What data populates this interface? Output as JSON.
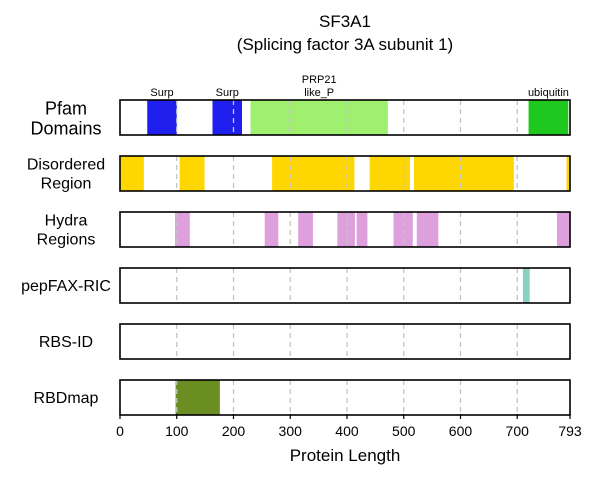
{
  "chart_data": {
    "type": "protein-track",
    "title_line1": "SF3A1",
    "title_line2": "(Splicing factor 3A subunit 1)",
    "xlabel": "Protein Length",
    "xlim": [
      0,
      793
    ],
    "xticks": [
      {
        "value": 0,
        "label": "0"
      },
      {
        "value": 100,
        "label": "100"
      },
      {
        "value": 200,
        "label": "200"
      },
      {
        "value": 300,
        "label": "300"
      },
      {
        "value": 400,
        "label": "400"
      },
      {
        "value": 500,
        "label": "500"
      },
      {
        "value": 600,
        "label": "600"
      },
      {
        "value": 700,
        "label": "700"
      },
      {
        "value": 793,
        "label": "793"
      }
    ],
    "gridlines": [
      100,
      200,
      300,
      400,
      500,
      600,
      700
    ],
    "tracks": [
      {
        "id": "pfam",
        "label_lines": [
          "Pfam",
          "Domains"
        ],
        "segments": [
          {
            "start": 48,
            "end": 100,
            "color": "#2020EE",
            "label_lines": [
              "Surp"
            ]
          },
          {
            "start": 163,
            "end": 215,
            "color": "#2020EE",
            "label_lines": [
              "Surp"
            ]
          },
          {
            "start": 230,
            "end": 472,
            "color": "#A0F070",
            "label_lines": [
              "PRP21",
              "like_P"
            ]
          },
          {
            "start": 720,
            "end": 790,
            "color": "#1EC81E",
            "label_lines": [
              "ubiquitin"
            ]
          }
        ]
      },
      {
        "id": "disordered",
        "label_lines": [
          "Disordered",
          "Region"
        ],
        "segments": [
          {
            "start": 0,
            "end": 42,
            "color": "#FFD700"
          },
          {
            "start": 105,
            "end": 149,
            "color": "#FFD700"
          },
          {
            "start": 268,
            "end": 413,
            "color": "#FFD700"
          },
          {
            "start": 440,
            "end": 511,
            "color": "#FFD700"
          },
          {
            "start": 518,
            "end": 694,
            "color": "#FFD700"
          },
          {
            "start": 787,
            "end": 793,
            "color": "#FFD700"
          }
        ]
      },
      {
        "id": "hydra",
        "label_lines": [
          "Hydra",
          "Regions"
        ],
        "segments": [
          {
            "start": 97,
            "end": 123,
            "color": "#DDA0DD"
          },
          {
            "start": 255,
            "end": 279,
            "color": "#DDA0DD"
          },
          {
            "start": 314,
            "end": 340,
            "color": "#DDA0DD"
          },
          {
            "start": 383,
            "end": 414,
            "color": "#DDA0DD"
          },
          {
            "start": 417,
            "end": 436,
            "color": "#DDA0DD"
          },
          {
            "start": 482,
            "end": 516,
            "color": "#DDA0DD"
          },
          {
            "start": 523,
            "end": 561,
            "color": "#DDA0DD"
          },
          {
            "start": 770,
            "end": 793,
            "color": "#DDA0DD"
          }
        ]
      },
      {
        "id": "pepfax",
        "label_lines": [
          "pepFAX-RIC"
        ],
        "segments": [
          {
            "start": 710,
            "end": 722,
            "color": "#88D0C0"
          }
        ]
      },
      {
        "id": "rbsid",
        "label_lines": [
          "RBS-ID"
        ],
        "segments": []
      },
      {
        "id": "rbdmap",
        "label_lines": [
          "RBDmap"
        ],
        "segments": [
          {
            "start": 98,
            "end": 176,
            "color": "#6B8E23"
          }
        ]
      }
    ]
  }
}
